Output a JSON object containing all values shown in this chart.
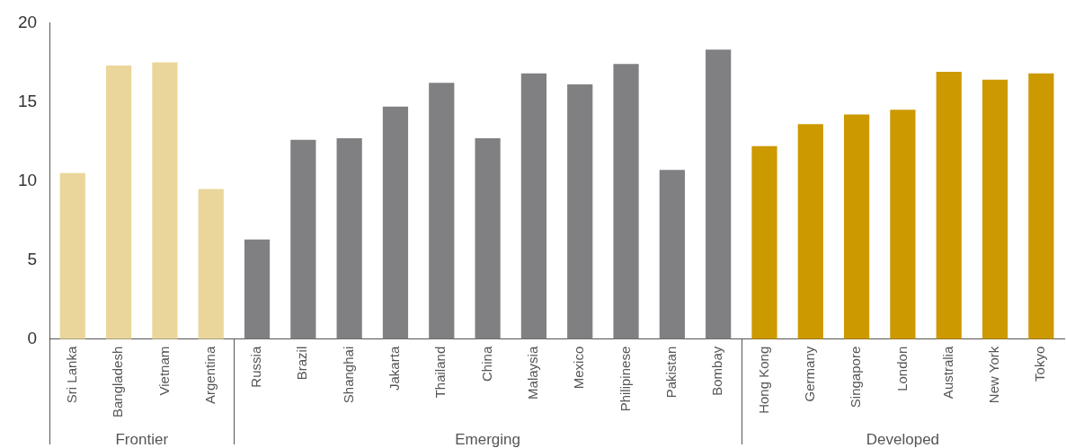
{
  "chart_data": {
    "type": "bar",
    "categories": [
      "Sri Lanka",
      "Bangladesh",
      "Vietnam",
      "Argentina",
      "Russia",
      "Brazil",
      "Shanghai",
      "Jakarta",
      "Thailand",
      "China",
      "Malaysia",
      "Mexico",
      "Philipinese",
      "Pakistan",
      "Bombay",
      "Hong Kong",
      "Germany",
      "Singapore",
      "London",
      "Australia",
      "New York",
      "Tokyo"
    ],
    "series": [
      {
        "color": "#ead69a",
        "values": [
          10.5,
          17.3,
          17.5,
          9.5,
          null,
          null,
          null,
          null,
          null,
          null,
          null,
          null,
          null,
          null,
          null,
          null,
          null,
          null,
          null,
          null,
          null,
          null
        ]
      },
      {
        "color": "#808083",
        "values": [
          null,
          null,
          null,
          null,
          6.3,
          12.6,
          12.7,
          14.7,
          16.2,
          12.7,
          16.8,
          16.1,
          17.4,
          10.7,
          18.3,
          null,
          null,
          null,
          null,
          null,
          null,
          null
        ]
      },
      {
        "color": "#cc9900",
        "values": [
          null,
          null,
          null,
          null,
          null,
          null,
          null,
          null,
          null,
          null,
          null,
          null,
          null,
          null,
          null,
          12.2,
          13.6,
          14.2,
          14.5,
          16.9,
          16.4,
          16.8
        ]
      }
    ],
    "annotations": [
      "Frontier",
      "Emerging",
      "Developed"
    ],
    "ylim": [
      0,
      20
    ],
    "yticks": [
      0,
      5,
      10,
      15,
      20
    ],
    "grid": false,
    "legend": false
  }
}
